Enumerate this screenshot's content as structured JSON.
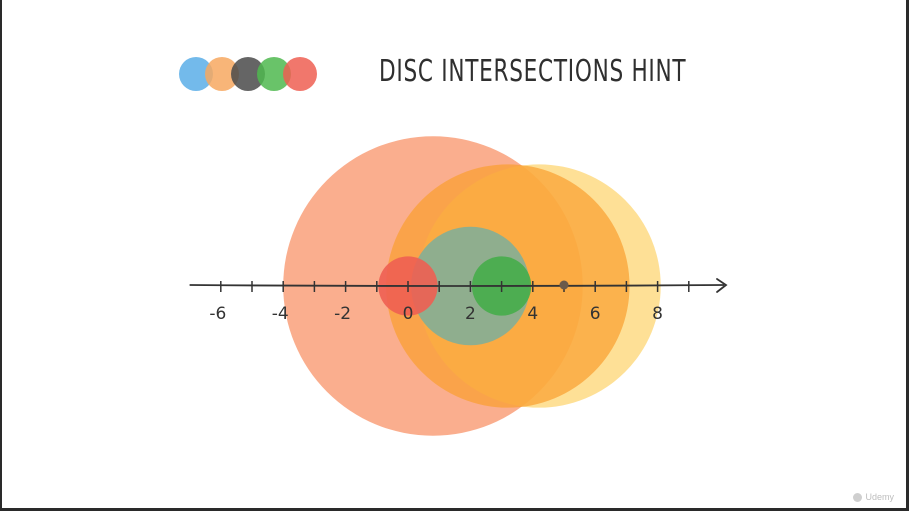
{
  "slide": {
    "title": "DISC INTERSECTIONS HINT",
    "watermark": "Udemy"
  },
  "legend_dots": [
    {
      "name": "blue-dot",
      "color": "#5aaee8"
    },
    {
      "name": "orange-dot",
      "color": "#f7a860"
    },
    {
      "name": "dark-dot",
      "color": "#4a4a4a"
    },
    {
      "name": "green-dot",
      "color": "#4fb84f"
    },
    {
      "name": "red-dot",
      "color": "#ee5f52"
    }
  ],
  "axis": {
    "min": -7,
    "max": 10,
    "tick_values": [
      -6,
      -5,
      -4,
      -3,
      -2,
      -1,
      0,
      1,
      2,
      3,
      4,
      5,
      6,
      7,
      8,
      9
    ],
    "label_values": [
      "-6",
      "-4",
      "-2",
      "0",
      "2",
      "4",
      "6",
      "8"
    ]
  },
  "discs": [
    {
      "name": "disc-salmon",
      "center": 0.8,
      "radius": 4.8,
      "color": "#f9a07a",
      "opacity": 0.85
    },
    {
      "name": "disc-yellow",
      "center": 4.2,
      "radius": 3.9,
      "color": "#fdd36a",
      "opacity": 0.7
    },
    {
      "name": "disc-orange",
      "center": 3.2,
      "radius": 3.9,
      "color": "#f9a030",
      "opacity": 0.72
    },
    {
      "name": "disc-teal",
      "center": 2.0,
      "radius": 1.9,
      "color": "#7fae99",
      "opacity": 0.88
    },
    {
      "name": "disc-red",
      "center": 0.0,
      "radius": 0.95,
      "color": "#ee5f52",
      "opacity": 0.9
    },
    {
      "name": "disc-green",
      "center": 3.0,
      "radius": 0.95,
      "color": "#46ad4a",
      "opacity": 0.9
    }
  ],
  "point": {
    "value": 5,
    "color": "#6b5a4a"
  }
}
